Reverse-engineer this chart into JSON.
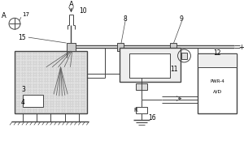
{
  "lc": "#444444",
  "fc_tank": "#e0e0e0",
  "fc_box": "#f5f5f5",
  "white": "#ffffff",
  "lw": 0.7,
  "lw2": 1.0,
  "labels": {
    "A_top": "A",
    "A_left": "A",
    "17": "17",
    "10": "10",
    "8": "8",
    "9": "9",
    "15": "15",
    "3": "3",
    "4": "4",
    "11": "11",
    "12": "12",
    "16": "16",
    "R": "R",
    "plus": "+",
    "PWR": "PWR-4",
    "AD": "A/D"
  }
}
